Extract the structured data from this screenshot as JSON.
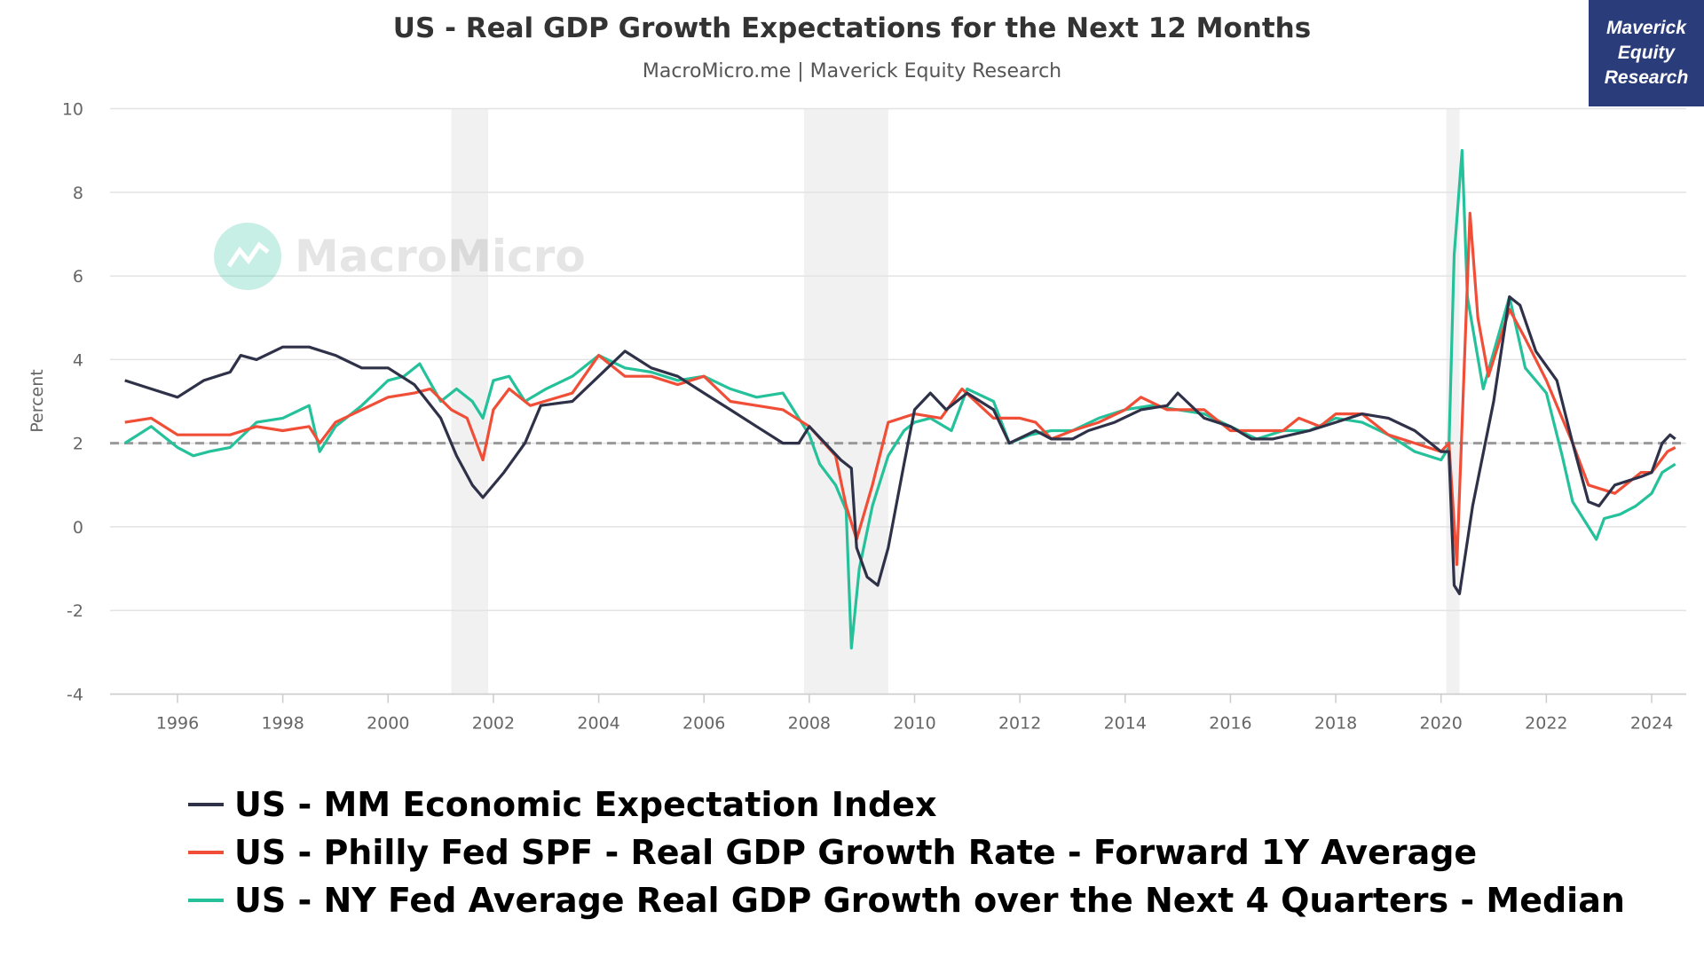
{
  "chart_data": {
    "type": "line",
    "title": "US - Real GDP Growth Expectations for the Next 12 Months",
    "subtitle": "MacroMicro.me | Maverick Equity Research",
    "watermark": "MacroMicro",
    "badge": "Maverick Equity Research",
    "ylabel": "Percent",
    "xlabel": "",
    "xlim": [
      1994.7,
      2024.8
    ],
    "ylim": [
      -4,
      10
    ],
    "yticks": [
      "10",
      "8",
      "6",
      "4",
      "2",
      "0",
      "-2",
      "-4"
    ],
    "xticks": [
      "1996",
      "1998",
      "2000",
      "2002",
      "2004",
      "2006",
      "2008",
      "2010",
      "2012",
      "2014",
      "2016",
      "2018",
      "2020",
      "2022",
      "2024"
    ],
    "reference_line": 2,
    "recessions": [
      [
        2001.2,
        2001.9
      ],
      [
        2007.9,
        2009.5
      ],
      [
        2020.1,
        2020.35
      ]
    ],
    "grid": true,
    "legend_position": "bottom",
    "series": [
      {
        "name": "US - MM Economic Expectation Index",
        "color": "#2e3148",
        "x": [
          1995.0,
          1995.5,
          1996.0,
          1996.5,
          1997.0,
          1997.2,
          1997.5,
          1998.0,
          1998.5,
          1999.0,
          1999.5,
          2000.0,
          2000.5,
          2001.0,
          2001.3,
          2001.6,
          2001.8,
          2002.2,
          2002.6,
          2002.9,
          2003.5,
          2004.0,
          2004.5,
          2005.0,
          2005.5,
          2006.0,
          2006.5,
          2007.0,
          2007.5,
          2007.8,
          2008.0,
          2008.3,
          2008.6,
          2008.8,
          2008.9,
          2009.1,
          2009.3,
          2009.5,
          2009.8,
          2010.0,
          2010.3,
          2010.6,
          2011.0,
          2011.5,
          2011.8,
          2012.3,
          2012.6,
          2013.0,
          2013.3,
          2013.8,
          2014.3,
          2014.8,
          2015.0,
          2015.5,
          2016.0,
          2016.4,
          2016.8,
          2017.5,
          2018.0,
          2018.5,
          2019.0,
          2019.5,
          2020.0,
          2020.15,
          2020.25,
          2020.35,
          2020.6,
          2021.0,
          2021.3,
          2021.5,
          2021.8,
          2022.2,
          2022.5,
          2022.8,
          2023.0,
          2023.3,
          2023.8,
          2024.0,
          2024.2,
          2024.35,
          2024.45
        ],
        "y": [
          3.5,
          3.3,
          3.1,
          3.5,
          3.7,
          4.1,
          4.0,
          4.3,
          4.3,
          4.1,
          3.8,
          3.8,
          3.4,
          2.6,
          1.7,
          1.0,
          0.7,
          1.3,
          2.0,
          2.9,
          3.0,
          3.6,
          4.2,
          3.8,
          3.6,
          3.2,
          2.8,
          2.4,
          2.0,
          2.0,
          2.4,
          2.0,
          1.6,
          1.4,
          -0.5,
          -1.2,
          -1.4,
          -0.5,
          1.5,
          2.8,
          3.2,
          2.8,
          3.2,
          2.8,
          2.0,
          2.3,
          2.1,
          2.1,
          2.3,
          2.5,
          2.8,
          2.9,
          3.2,
          2.6,
          2.4,
          2.1,
          2.1,
          2.3,
          2.5,
          2.7,
          2.6,
          2.3,
          1.8,
          1.8,
          -1.4,
          -1.6,
          0.5,
          3.0,
          5.5,
          5.3,
          4.2,
          3.5,
          2.0,
          0.6,
          0.5,
          1.0,
          1.2,
          1.3,
          2.0,
          2.2,
          2.1
        ]
      },
      {
        "name": "US - Philly Fed SPF - Real GDP Growth Rate - Forward 1Y Average",
        "color": "#f04e37",
        "x": [
          1995.0,
          1995.5,
          1996.0,
          1996.5,
          1997.0,
          1997.5,
          1998.0,
          1998.5,
          1998.7,
          1999.0,
          1999.5,
          2000.0,
          2000.5,
          2000.8,
          2001.2,
          2001.5,
          2001.8,
          2002.0,
          2002.3,
          2002.7,
          2003.5,
          2004.0,
          2004.5,
          2005.0,
          2005.5,
          2006.0,
          2006.5,
          2007.0,
          2007.5,
          2008.0,
          2008.5,
          2008.7,
          2008.9,
          2009.2,
          2009.5,
          2010.0,
          2010.5,
          2010.9,
          2011.5,
          2012.0,
          2012.3,
          2012.6,
          2013.0,
          2013.5,
          2014.0,
          2014.3,
          2014.8,
          2015.5,
          2016.0,
          2016.5,
          2017.0,
          2017.3,
          2017.7,
          2018.0,
          2018.5,
          2019.0,
          2019.5,
          2020.0,
          2020.15,
          2020.3,
          2020.55,
          2020.7,
          2020.9,
          2021.3,
          2021.6,
          2022.0,
          2022.5,
          2022.8,
          2023.3,
          2023.8,
          2024.0,
          2024.3,
          2024.45
        ],
        "y": [
          2.5,
          2.6,
          2.2,
          2.2,
          2.2,
          2.4,
          2.3,
          2.4,
          2.0,
          2.5,
          2.8,
          3.1,
          3.2,
          3.3,
          2.8,
          2.6,
          1.6,
          2.8,
          3.3,
          2.9,
          3.2,
          4.1,
          3.6,
          3.6,
          3.4,
          3.6,
          3.0,
          2.9,
          2.8,
          2.4,
          1.7,
          0.5,
          -0.3,
          1.0,
          2.5,
          2.7,
          2.6,
          3.3,
          2.6,
          2.6,
          2.5,
          2.1,
          2.3,
          2.5,
          2.8,
          3.1,
          2.8,
          2.8,
          2.3,
          2.3,
          2.3,
          2.6,
          2.4,
          2.7,
          2.7,
          2.2,
          2.0,
          1.8,
          2.0,
          -0.9,
          7.5,
          5.0,
          3.6,
          5.2,
          4.5,
          3.5,
          2.0,
          1.0,
          0.8,
          1.3,
          1.3,
          1.8,
          1.9
        ]
      },
      {
        "name": "US - NY Fed Average Real GDP Growth over the Next 4 Quarters - Median",
        "color": "#25c19a",
        "x": [
          1995.0,
          1995.5,
          1996.0,
          1996.3,
          1996.6,
          1997.0,
          1997.5,
          1998.0,
          1998.5,
          1998.7,
          1999.0,
          1999.5,
          2000.0,
          2000.3,
          2000.6,
          2001.0,
          2001.3,
          2001.6,
          2001.8,
          2002.0,
          2002.3,
          2002.6,
          2003.0,
          2003.5,
          2004.0,
          2004.5,
          2005.0,
          2005.5,
          2006.0,
          2006.5,
          2007.0,
          2007.5,
          2008.0,
          2008.2,
          2008.5,
          2008.7,
          2008.8,
          2008.95,
          2009.2,
          2009.5,
          2009.8,
          2010.0,
          2010.3,
          2010.7,
          2011.0,
          2011.5,
          2011.8,
          2012.2,
          2012.6,
          2013.0,
          2013.5,
          2014.0,
          2014.5,
          2015.0,
          2015.5,
          2016.0,
          2016.5,
          2017.0,
          2017.5,
          2018.0,
          2018.5,
          2019.0,
          2019.5,
          2020.0,
          2020.15,
          2020.25,
          2020.4,
          2020.5,
          2020.8,
          2021.3,
          2021.6,
          2022.0,
          2022.3,
          2022.5,
          2022.8,
          2022.95,
          2023.1,
          2023.4,
          2023.7,
          2024.0,
          2024.2,
          2024.45
        ],
        "y": [
          2.0,
          2.4,
          1.9,
          1.7,
          1.8,
          1.9,
          2.5,
          2.6,
          2.9,
          1.8,
          2.4,
          2.9,
          3.5,
          3.6,
          3.9,
          3.0,
          3.3,
          3.0,
          2.6,
          3.5,
          3.6,
          3.0,
          3.3,
          3.6,
          4.1,
          3.8,
          3.7,
          3.5,
          3.6,
          3.3,
          3.1,
          3.2,
          2.2,
          1.5,
          1.0,
          0.4,
          -2.9,
          -1.0,
          0.5,
          1.7,
          2.3,
          2.5,
          2.6,
          2.3,
          3.3,
          3.0,
          2.0,
          2.2,
          2.3,
          2.3,
          2.6,
          2.8,
          2.9,
          2.8,
          2.7,
          2.4,
          2.1,
          2.3,
          2.3,
          2.6,
          2.5,
          2.2,
          1.8,
          1.6,
          1.9,
          6.5,
          9.0,
          5.5,
          3.3,
          5.5,
          3.8,
          3.2,
          1.7,
          0.6,
          0.0,
          -0.3,
          0.2,
          0.3,
          0.5,
          0.8,
          1.3,
          1.5
        ]
      }
    ]
  }
}
